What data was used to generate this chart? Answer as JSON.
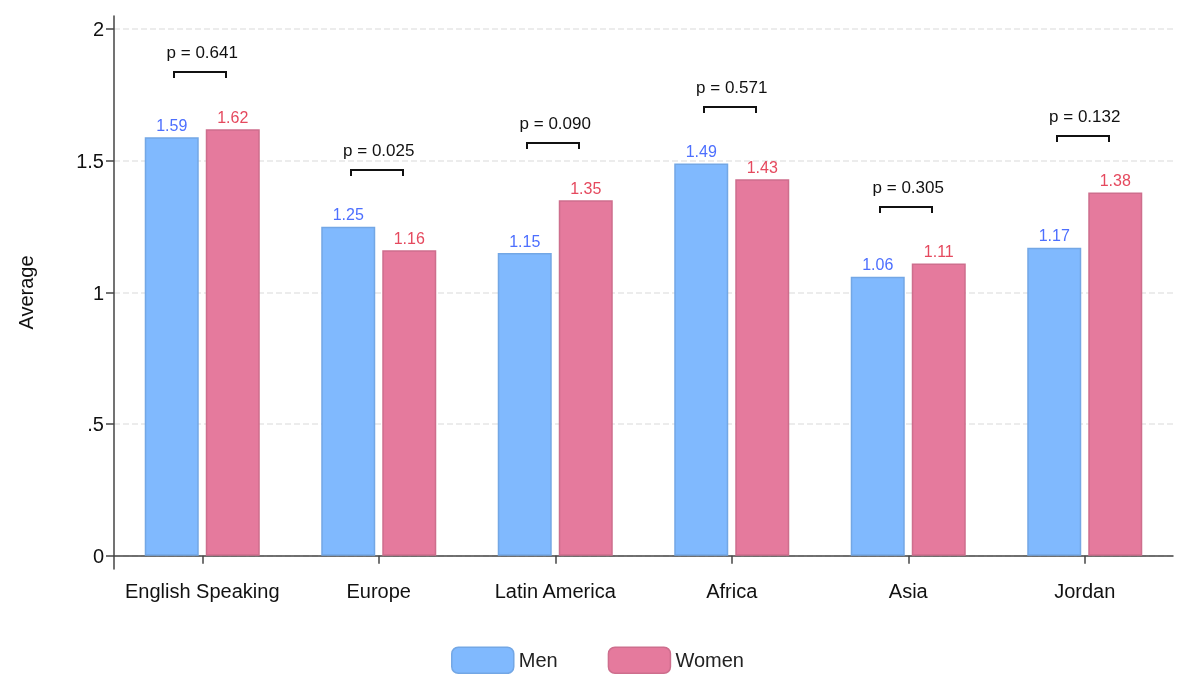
{
  "chart_data": {
    "type": "bar",
    "ylabel": "Average",
    "categories": [
      "English Speaking",
      "Europe",
      "Latin America",
      "Africa",
      "Asia",
      "Jordan"
    ],
    "series": [
      {
        "name": "Men",
        "color": "#80b9fe",
        "values": [
          1.59,
          1.25,
          1.15,
          1.49,
          1.06,
          1.17
        ]
      },
      {
        "name": "Women",
        "color": "#e57a9d",
        "values": [
          1.62,
          1.16,
          1.35,
          1.43,
          1.11,
          1.38
        ]
      }
    ],
    "ylim": [
      -0.05,
      2.05
    ],
    "yticks": [
      0,
      {
        "value": 0.5,
        "label": ".5"
      },
      1,
      1.5,
      2
    ],
    "grid": "y",
    "legend": "bottom",
    "data_labels": true,
    "annotations": [
      "p = 0.641",
      "p = 0.025",
      "p = 0.090",
      "p = 0.571",
      "p = 0.305",
      "p = 0.132"
    ]
  }
}
